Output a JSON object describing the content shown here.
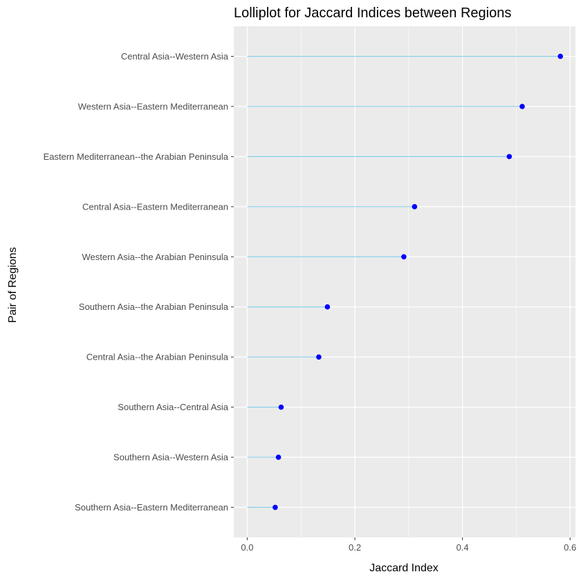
{
  "chart_data": {
    "type": "lollipop",
    "title": "Lolliplot for Jaccard Indices between Regions",
    "xlabel": "Jaccard Index",
    "ylabel": "Pair of Regions",
    "xlim": [
      -0.025,
      0.61
    ],
    "xticks": [
      0.0,
      0.2,
      0.4,
      0.6
    ],
    "xtick_labels": [
      "0.0",
      "0.2",
      "0.4",
      "0.6"
    ],
    "grid": true,
    "colors": {
      "panel": "#ebebeb",
      "grid": "#ffffff",
      "stem": "#87ceeb",
      "point": "#0000ff",
      "tick": "#333333"
    },
    "categories": [
      "Central Asia--Western Asia",
      "Western Asia--Eastern Mediterranean",
      "Eastern Mediterranean--the Arabian Peninsula",
      "Central Asia--Eastern Mediterranean",
      "Western Asia--the Arabian Peninsula",
      "Southern Asia--the Arabian Peninsula",
      "Central Asia--the Arabian Peninsula",
      "Southern Asia--Central Asia",
      "Southern Asia--Western Asia",
      "Southern Asia--Eastern Mediterranean"
    ],
    "values": [
      0.582,
      0.511,
      0.487,
      0.311,
      0.291,
      0.149,
      0.133,
      0.063,
      0.058,
      0.052
    ]
  }
}
